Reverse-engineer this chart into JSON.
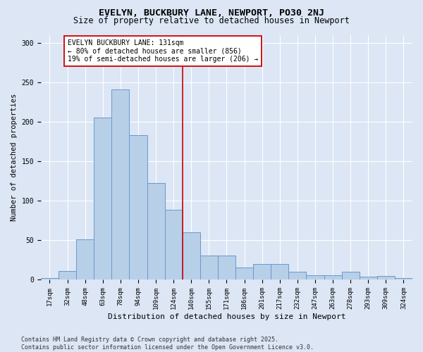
{
  "title": "EVELYN, BUCKBURY LANE, NEWPORT, PO30 2NJ",
  "subtitle": "Size of property relative to detached houses in Newport",
  "xlabel": "Distribution of detached houses by size in Newport",
  "ylabel": "Number of detached properties",
  "categories": [
    "17sqm",
    "32sqm",
    "48sqm",
    "63sqm",
    "78sqm",
    "94sqm",
    "109sqm",
    "124sqm",
    "140sqm",
    "155sqm",
    "171sqm",
    "186sqm",
    "201sqm",
    "217sqm",
    "232sqm",
    "247sqm",
    "263sqm",
    "278sqm",
    "293sqm",
    "309sqm",
    "324sqm"
  ],
  "values": [
    2,
    11,
    51,
    206,
    241,
    183,
    123,
    89,
    60,
    31,
    31,
    16,
    20,
    20,
    10,
    6,
    6,
    10,
    4,
    5,
    2
  ],
  "bar_color": "#b8cfe8",
  "bar_edge_color": "#6699cc",
  "vline_x_index": 7.5,
  "vline_color": "#cc0000",
  "annotation_text": "EVELYN BUCKBURY LANE: 131sqm\n← 80% of detached houses are smaller (856)\n19% of semi-detached houses are larger (206) →",
  "annotation_box_color": "#ffffff",
  "annotation_box_edge": "#cc0000",
  "ylim": [
    0,
    310
  ],
  "yticks": [
    0,
    50,
    100,
    150,
    200,
    250,
    300
  ],
  "background_color": "#dce6f5",
  "footer_text": "Contains HM Land Registry data © Crown copyright and database right 2025.\nContains public sector information licensed under the Open Government Licence v3.0.",
  "title_fontsize": 9.5,
  "subtitle_fontsize": 8.5,
  "tick_fontsize": 6.5,
  "ylabel_fontsize": 7.5,
  "xlabel_fontsize": 8,
  "annotation_fontsize": 7,
  "footer_fontsize": 6
}
